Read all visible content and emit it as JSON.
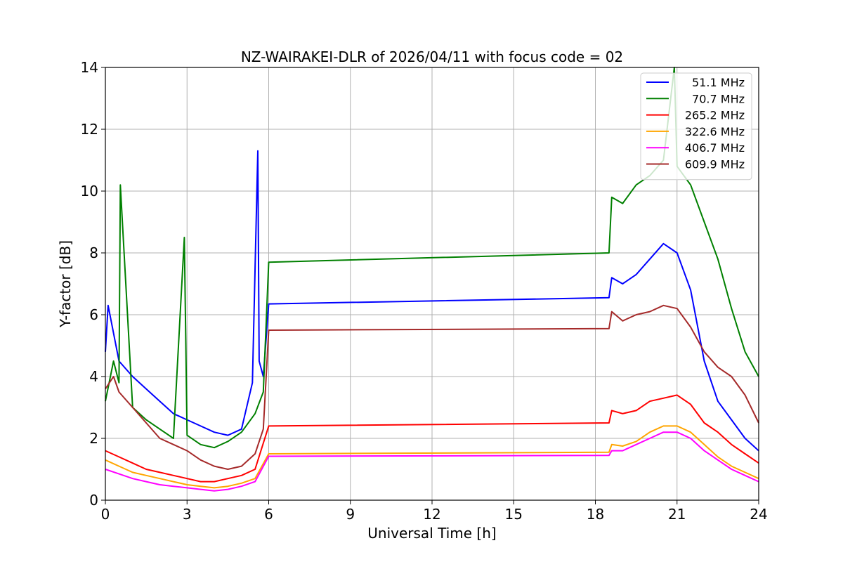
{
  "chart_data": {
    "type": "line",
    "title": "NZ-WAIRAKEI-DLR of 2026/04/11 with focus code = 02",
    "xlabel": "Universal Time [h]",
    "ylabel": "Y-factor [dB]",
    "xlim": [
      0,
      24
    ],
    "ylim": [
      0,
      14
    ],
    "xticks": [
      0,
      3,
      6,
      9,
      12,
      15,
      18,
      21,
      24
    ],
    "yticks": [
      0,
      2,
      4,
      6,
      8,
      10,
      12,
      14
    ],
    "grid": true,
    "legend_position": "top-right",
    "series": [
      {
        "name": "51.1 MHz",
        "color": "#0000ff",
        "x": [
          0,
          0.1,
          0.5,
          1.0,
          1.5,
          2.0,
          2.5,
          3.0,
          3.5,
          4.0,
          4.5,
          5.0,
          5.4,
          5.6,
          5.65,
          5.8,
          6.0,
          18.5,
          18.6,
          19.0,
          19.5,
          20.0,
          20.5,
          21.0,
          21.5,
          22.0,
          22.5,
          23.0,
          23.5,
          24.0
        ],
        "y": [
          4.8,
          6.3,
          4.5,
          4.0,
          3.6,
          3.2,
          2.8,
          2.6,
          2.4,
          2.2,
          2.1,
          2.3,
          3.8,
          11.3,
          4.5,
          4.0,
          6.35,
          6.55,
          7.2,
          7.0,
          7.3,
          7.8,
          8.3,
          8.0,
          6.8,
          4.5,
          3.2,
          2.6,
          2.0,
          1.6
        ]
      },
      {
        "name": "70.7 MHz",
        "color": "#008000",
        "x": [
          0,
          0.3,
          0.5,
          0.55,
          1.0,
          1.5,
          2.0,
          2.5,
          2.9,
          3.0,
          3.5,
          4.0,
          4.5,
          5.0,
          5.5,
          5.8,
          6.0,
          18.5,
          18.6,
          19.0,
          19.5,
          20.0,
          20.5,
          20.9,
          21.0,
          21.5,
          22.0,
          22.5,
          23.0,
          23.5,
          24.0
        ],
        "y": [
          3.2,
          4.5,
          3.8,
          10.2,
          3.0,
          2.6,
          2.3,
          2.0,
          8.5,
          2.1,
          1.8,
          1.7,
          1.9,
          2.2,
          2.8,
          3.5,
          7.7,
          8.0,
          9.8,
          9.6,
          10.2,
          10.5,
          11.0,
          14.0,
          10.8,
          10.2,
          9.0,
          7.8,
          6.2,
          4.8,
          4.0
        ]
      },
      {
        "name": "265.2 MHz",
        "color": "#ff0000",
        "x": [
          0,
          0.5,
          1.0,
          1.5,
          2.0,
          2.5,
          3.0,
          3.5,
          4.0,
          4.5,
          5.0,
          5.5,
          6.0,
          18.5,
          18.6,
          19.0,
          19.5,
          20.0,
          20.5,
          21.0,
          21.5,
          22.0,
          22.5,
          23.0,
          23.5,
          24.0
        ],
        "y": [
          1.6,
          1.4,
          1.2,
          1.0,
          0.9,
          0.8,
          0.7,
          0.6,
          0.6,
          0.7,
          0.8,
          1.0,
          2.4,
          2.5,
          2.9,
          2.8,
          2.9,
          3.2,
          3.3,
          3.4,
          3.1,
          2.5,
          2.2,
          1.8,
          1.5,
          1.2
        ]
      },
      {
        "name": "322.6 MHz",
        "color": "#ffa500",
        "x": [
          0,
          0.5,
          1.0,
          1.5,
          2.0,
          2.5,
          3.0,
          3.5,
          4.0,
          4.5,
          5.0,
          5.5,
          6.0,
          18.5,
          18.6,
          19.0,
          19.5,
          20.0,
          20.5,
          21.0,
          21.5,
          22.0,
          22.5,
          23.0,
          23.5,
          24.0
        ],
        "y": [
          1.3,
          1.1,
          0.9,
          0.8,
          0.7,
          0.6,
          0.5,
          0.45,
          0.4,
          0.45,
          0.55,
          0.7,
          1.5,
          1.55,
          1.8,
          1.75,
          1.9,
          2.2,
          2.4,
          2.4,
          2.2,
          1.8,
          1.4,
          1.1,
          0.9,
          0.7
        ]
      },
      {
        "name": "406.7 MHz",
        "color": "#ff00ff",
        "x": [
          0,
          0.5,
          1.0,
          1.5,
          2.0,
          2.5,
          3.0,
          3.5,
          4.0,
          4.5,
          5.0,
          5.5,
          6.0,
          18.5,
          18.6,
          19.0,
          19.5,
          20.0,
          20.5,
          21.0,
          21.5,
          22.0,
          22.5,
          23.0,
          23.5,
          24.0
        ],
        "y": [
          1.0,
          0.85,
          0.7,
          0.6,
          0.5,
          0.45,
          0.4,
          0.35,
          0.3,
          0.35,
          0.45,
          0.6,
          1.42,
          1.45,
          1.6,
          1.6,
          1.8,
          2.0,
          2.2,
          2.2,
          2.0,
          1.6,
          1.3,
          1.0,
          0.8,
          0.6
        ]
      },
      {
        "name": "609.9 MHz",
        "color": "#a52a2a",
        "x": [
          0,
          0.3,
          0.5,
          1.0,
          1.5,
          2.0,
          2.5,
          3.0,
          3.5,
          4.0,
          4.5,
          5.0,
          5.5,
          5.8,
          6.0,
          18.5,
          18.6,
          19.0,
          19.5,
          20.0,
          20.5,
          21.0,
          21.5,
          22.0,
          22.5,
          23.0,
          23.5,
          24.0
        ],
        "y": [
          3.6,
          4.0,
          3.5,
          3.0,
          2.5,
          2.0,
          1.8,
          1.6,
          1.3,
          1.1,
          1.0,
          1.1,
          1.5,
          2.3,
          5.5,
          5.55,
          6.1,
          5.8,
          6.0,
          6.1,
          6.3,
          6.2,
          5.6,
          4.8,
          4.3,
          4.0,
          3.4,
          2.5
        ]
      }
    ]
  }
}
